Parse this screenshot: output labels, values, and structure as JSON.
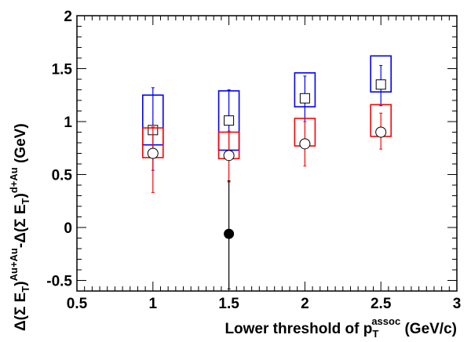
{
  "chart_data": {
    "type": "scatter",
    "title": "",
    "xlabel": {
      "main": "Lower threshold of p",
      "sub": "T",
      "sup": "assoc",
      "unit": " (GeV/c)"
    },
    "ylabel": {
      "p1": "Δ(Σ E",
      "sub1": "T",
      "p2": ")",
      "sup1": "Au+Au",
      "p3": "-Δ(Σ E",
      "sub2": "T",
      "p4": ")",
      "sup2": "d+Au",
      "unit": " (GeV)"
    },
    "xlim": [
      0.5,
      3
    ],
    "ylim": [
      -0.6,
      2
    ],
    "x_ticks": [
      0.5,
      1,
      1.5,
      2,
      2.5,
      3
    ],
    "x_tick_labels": [
      "0.5",
      "1",
      "1.5",
      "2",
      "2.5",
      "3"
    ],
    "y_ticks": [
      -0.5,
      0,
      0.5,
      1,
      1.5,
      2
    ],
    "y_tick_labels": [
      "-0.5",
      "0",
      "0.5",
      "1",
      "1.5",
      "2"
    ],
    "grid": false,
    "legend": "none",
    "series": [
      {
        "marker": "open-square",
        "color": "#0000ff",
        "x": [
          1,
          1.5,
          2,
          2.5
        ],
        "y": [
          0.92,
          1.01,
          1.22,
          1.35
        ],
        "stat_err": [
          [
            0.54,
            1.32
          ],
          [
            0.72,
            1.3
          ],
          [
            1.0,
            1.43
          ],
          [
            1.15,
            1.53
          ]
        ],
        "sys_err": [
          [
            0.78,
            1.25
          ],
          [
            0.73,
            1.29
          ],
          [
            1.14,
            1.46
          ],
          [
            1.28,
            1.62
          ]
        ]
      },
      {
        "marker": "open-circle",
        "color": "#ff0000",
        "x": [
          1,
          1.5,
          2,
          2.5
        ],
        "y": [
          0.7,
          0.68,
          0.79,
          0.9
        ],
        "stat_err": [
          [
            0.33,
            0.95
          ],
          [
            0.43,
            0.91
          ],
          [
            0.58,
            1.0
          ],
          [
            0.74,
            1.08
          ]
        ],
        "sys_err": [
          [
            0.66,
            0.94
          ],
          [
            0.65,
            0.9
          ],
          [
            0.77,
            1.03
          ],
          [
            0.86,
            1.16
          ]
        ]
      },
      {
        "marker": "filled-circle",
        "color": "#000000",
        "x": [
          1.5
        ],
        "y": [
          -0.06
        ],
        "stat_err": [
          [
            -0.58,
            0.44
          ]
        ],
        "sys_err": []
      }
    ]
  }
}
